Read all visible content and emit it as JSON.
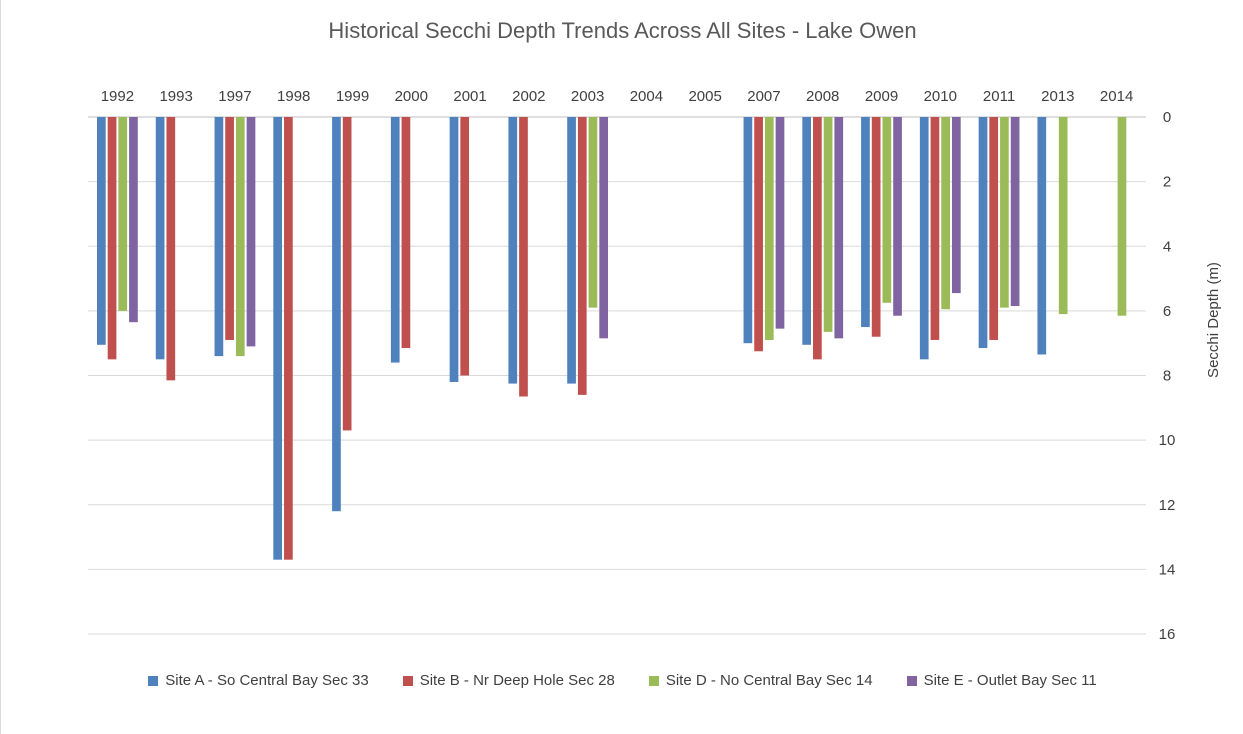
{
  "chart_data": {
    "type": "bar",
    "title": "Historical Secchi Depth Trends Across All Sites - Lake Owen",
    "xlabel": "",
    "ylabel": "Secchi Depth (m)",
    "ylim": [
      0,
      16
    ],
    "y_inverted": true,
    "yticks": [
      0,
      2,
      4,
      6,
      8,
      10,
      12,
      14,
      16
    ],
    "x_axis_position": "top",
    "y_axis_position": "right",
    "grid": true,
    "legend": "bottom",
    "categories": [
      "1992",
      "1993",
      "1997",
      "1998",
      "1999",
      "2000",
      "2001",
      "2002",
      "2003",
      "2004",
      "2005",
      "2007",
      "2008",
      "2009",
      "2010",
      "2011",
      "2013",
      "2014"
    ],
    "series": [
      {
        "name": "Site A - So Central Bay Sec 33",
        "color": "#4f81bd",
        "values": [
          7.05,
          7.5,
          7.4,
          13.7,
          12.2,
          7.6,
          8.2,
          8.25,
          8.25,
          null,
          null,
          7.0,
          7.05,
          6.5,
          7.5,
          7.15,
          7.35,
          null
        ]
      },
      {
        "name": "Site B - Nr Deep Hole Sec 28",
        "color": "#c0504d",
        "values": [
          7.5,
          8.15,
          6.9,
          13.7,
          9.7,
          7.15,
          8.0,
          8.65,
          8.6,
          null,
          null,
          7.25,
          7.5,
          6.8,
          6.9,
          6.9,
          null,
          null
        ]
      },
      {
        "name": "Site D - No Central Bay Sec 14",
        "color": "#9bbb59",
        "values": [
          6.0,
          null,
          7.4,
          null,
          null,
          null,
          null,
          null,
          5.9,
          null,
          null,
          6.9,
          6.65,
          5.75,
          5.95,
          5.9,
          6.1,
          6.15
        ]
      },
      {
        "name": "Site E - Outlet Bay Sec 11",
        "color": "#8064a2",
        "values": [
          6.35,
          null,
          7.1,
          null,
          null,
          null,
          null,
          null,
          6.85,
          null,
          null,
          6.55,
          6.85,
          6.15,
          5.45,
          5.85,
          null,
          null
        ]
      }
    ]
  }
}
